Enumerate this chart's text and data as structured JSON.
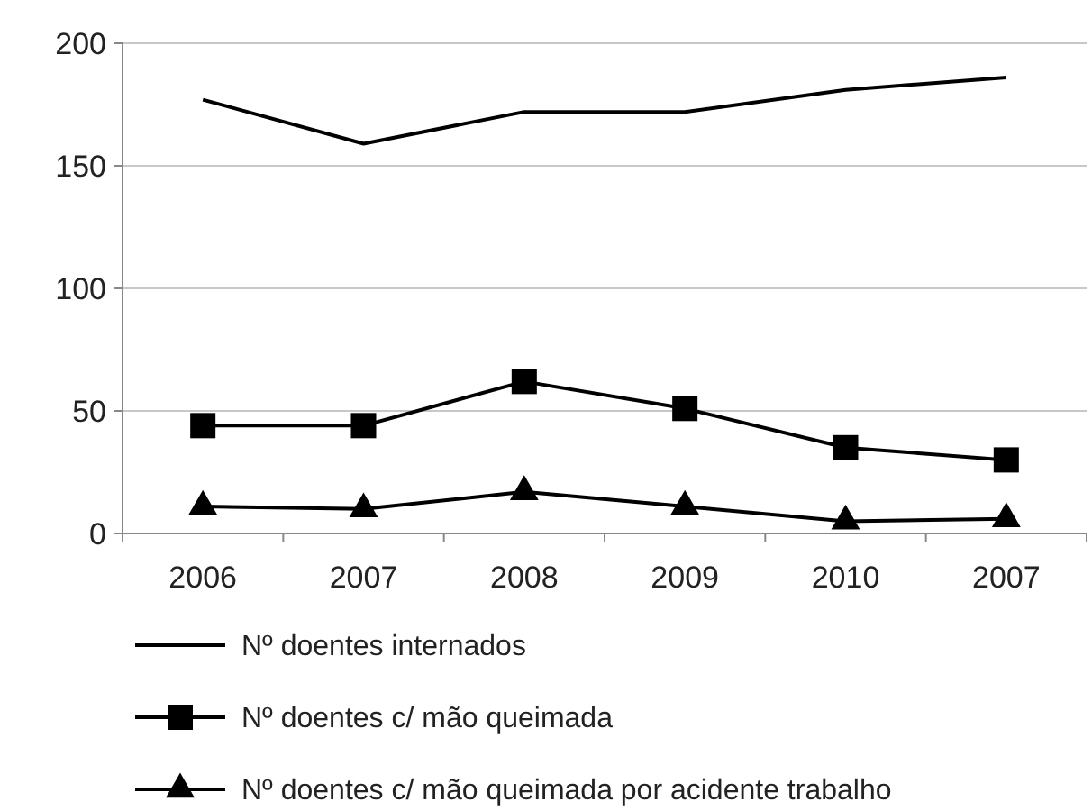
{
  "chart_data": {
    "type": "line",
    "categories": [
      "2006",
      "2007",
      "2008",
      "2009",
      "2010",
      "2007"
    ],
    "series": [
      {
        "name": "Nº doentes internados",
        "color": "#000000",
        "marker": "none",
        "values": [
          177,
          159,
          172,
          172,
          181,
          186
        ]
      },
      {
        "name": "Nº doentes c/ mão queimada",
        "color": "#000000",
        "marker": "square",
        "values": [
          44,
          44,
          62,
          51,
          35,
          30
        ]
      },
      {
        "name": "Nº doentes c/ mão queimada por acidente trabalho",
        "color": "#000000",
        "marker": "triangle",
        "values": [
          11,
          10,
          17,
          11,
          5,
          6
        ]
      }
    ],
    "ylim": [
      0,
      200
    ],
    "yticks": [
      0,
      50,
      100,
      150,
      200
    ],
    "grid": "y",
    "legend": "bottom"
  }
}
